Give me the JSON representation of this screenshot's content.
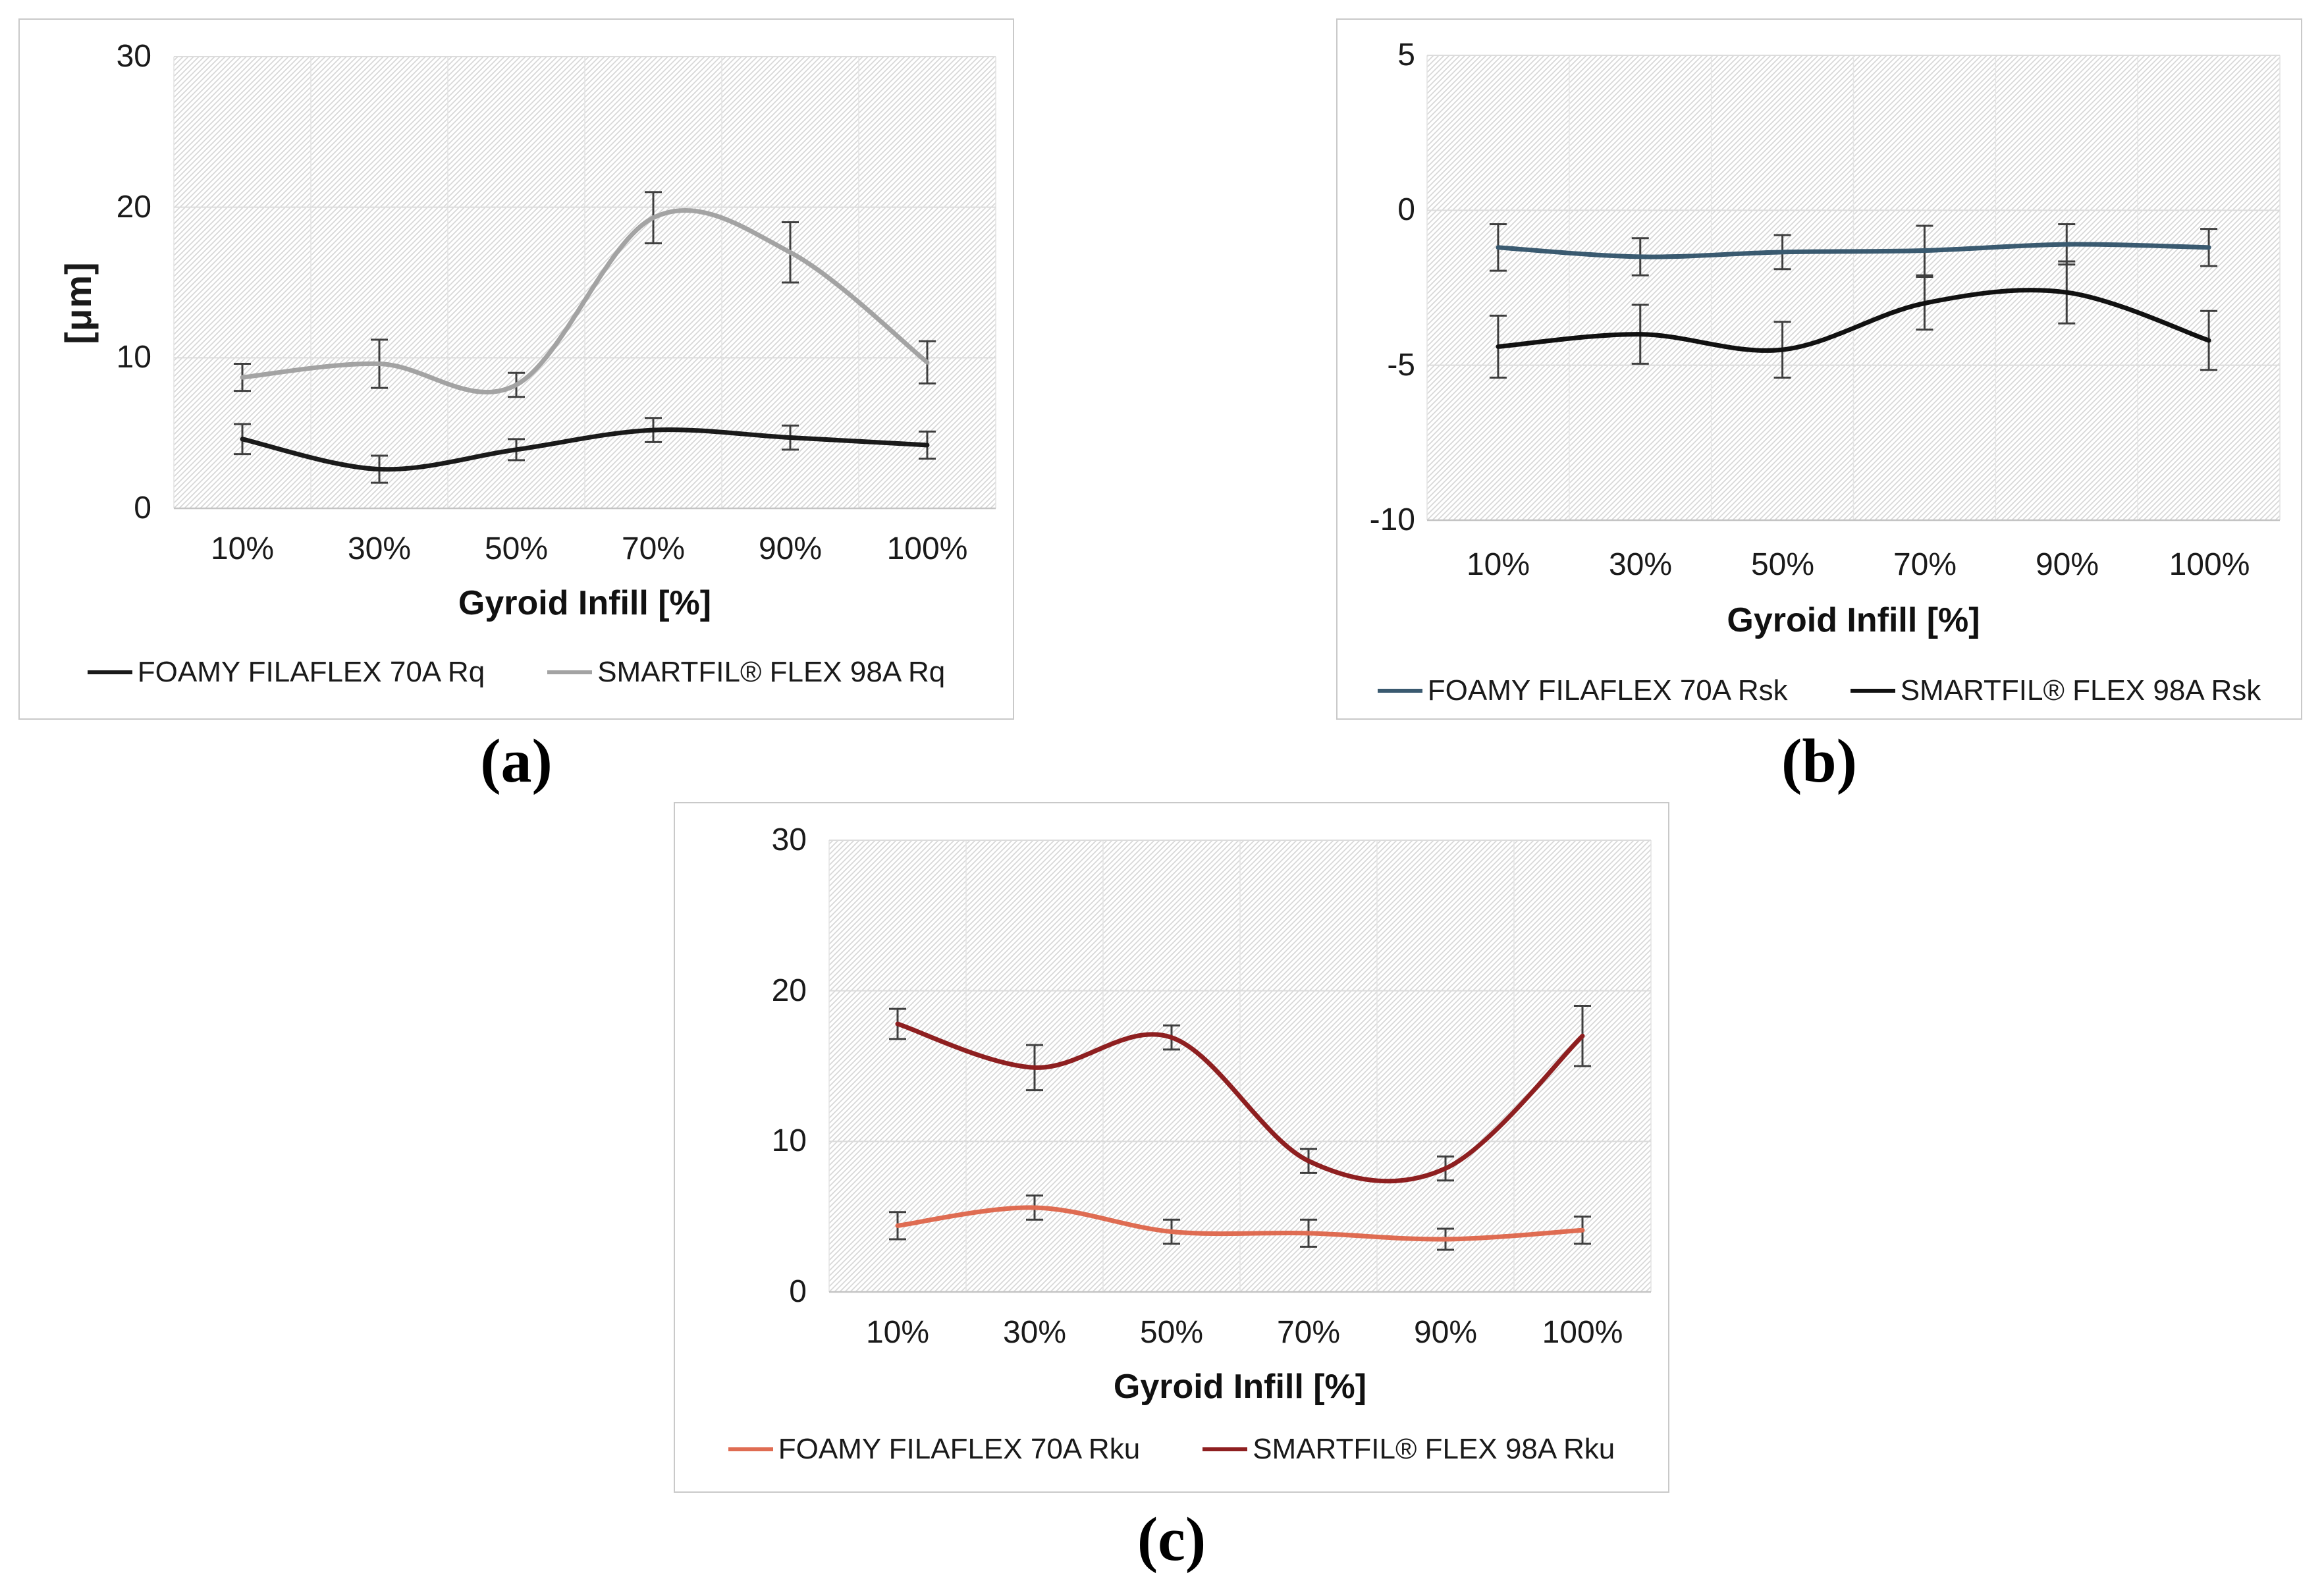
{
  "figure": {
    "background": "#ffffff",
    "panel_captions": {
      "a": "(a)",
      "b": "(b)",
      "c": "(c)"
    },
    "colors": {
      "panel_border": "#c9c9c9",
      "plot_hatch_line": "#d7d7d7",
      "gridline": "#dcdcdc",
      "vertical_gridline": "#e4e4e4",
      "axis_line": "#c4c4c4",
      "error_bar": "#3f3f3f",
      "tick_text": "#1a1a1a"
    }
  },
  "chart_data": [
    {
      "id": "a",
      "type": "line",
      "smooth": true,
      "error_bars": true,
      "grid": true,
      "legend_position": "bottom",
      "xlabel": "Gyroid Infill [%]",
      "ylabel": "[μm]",
      "categories": [
        "10%",
        "30%",
        "50%",
        "70%",
        "90%",
        "100%"
      ],
      "y_ticks": [
        "30",
        "20",
        "10",
        "0"
      ],
      "ylim": [
        0,
        30
      ],
      "series": [
        {
          "name": "FOAMY FILAFLEX 70A Rq",
          "color": "#1a1a1a",
          "values": [
            4.6,
            2.6,
            3.9,
            5.2,
            4.7,
            4.2
          ],
          "errors": [
            1.0,
            0.9,
            0.7,
            0.8,
            0.8,
            0.9
          ]
        },
        {
          "name": "SMARTFIL® FLEX 98A Rq",
          "color": "#a3a3a3",
          "values": [
            8.7,
            9.6,
            8.2,
            19.3,
            17.0,
            9.7
          ],
          "errors": [
            0.9,
            1.6,
            0.8,
            1.7,
            2.0,
            1.4
          ]
        }
      ]
    },
    {
      "id": "b",
      "type": "line",
      "smooth": true,
      "error_bars": true,
      "grid": true,
      "legend_position": "bottom",
      "xlabel": "Gyroid Infill [%]",
      "ylabel": "",
      "categories": [
        "10%",
        "30%",
        "50%",
        "70%",
        "90%",
        "100%"
      ],
      "y_ticks": [
        "5",
        "0",
        "-5",
        "-10"
      ],
      "ylim": [
        -10,
        5
      ],
      "series": [
        {
          "name": "FOAMY FILAFLEX 70A Rsk",
          "color": "#3a5a70",
          "values": [
            -1.2,
            -1.5,
            -1.35,
            -1.3,
            -1.1,
            -1.2
          ],
          "errors": [
            0.75,
            0.6,
            0.55,
            0.8,
            0.65,
            0.6
          ]
        },
        {
          "name": "SMARTFIL® FLEX 98A Rsk",
          "color": "#111111",
          "values": [
            -4.4,
            -4.0,
            -4.5,
            -3.0,
            -2.65,
            -4.2
          ],
          "errors": [
            1.0,
            0.95,
            0.9,
            0.85,
            1.0,
            0.95
          ]
        }
      ]
    },
    {
      "id": "c",
      "type": "line",
      "smooth": true,
      "error_bars": true,
      "grid": true,
      "legend_position": "bottom",
      "xlabel": "Gyroid Infill [%]",
      "ylabel": "",
      "categories": [
        "10%",
        "30%",
        "50%",
        "70%",
        "90%",
        "100%"
      ],
      "y_ticks": [
        "30",
        "20",
        "10",
        "0"
      ],
      "ylim": [
        0,
        30
      ],
      "series": [
        {
          "name": "FOAMY FILAFLEX 70A Rku",
          "color": "#df6c52",
          "values": [
            4.4,
            5.6,
            4.0,
            3.9,
            3.5,
            4.1
          ],
          "errors": [
            0.9,
            0.8,
            0.8,
            0.9,
            0.7,
            0.9
          ]
        },
        {
          "name": "SMARTFIL® FLEX 98A Rku",
          "color": "#8e1f20",
          "values": [
            17.8,
            14.9,
            16.9,
            8.7,
            8.2,
            17.0
          ],
          "errors": [
            1.0,
            1.5,
            0.8,
            0.8,
            0.8,
            2.0
          ]
        }
      ]
    }
  ]
}
